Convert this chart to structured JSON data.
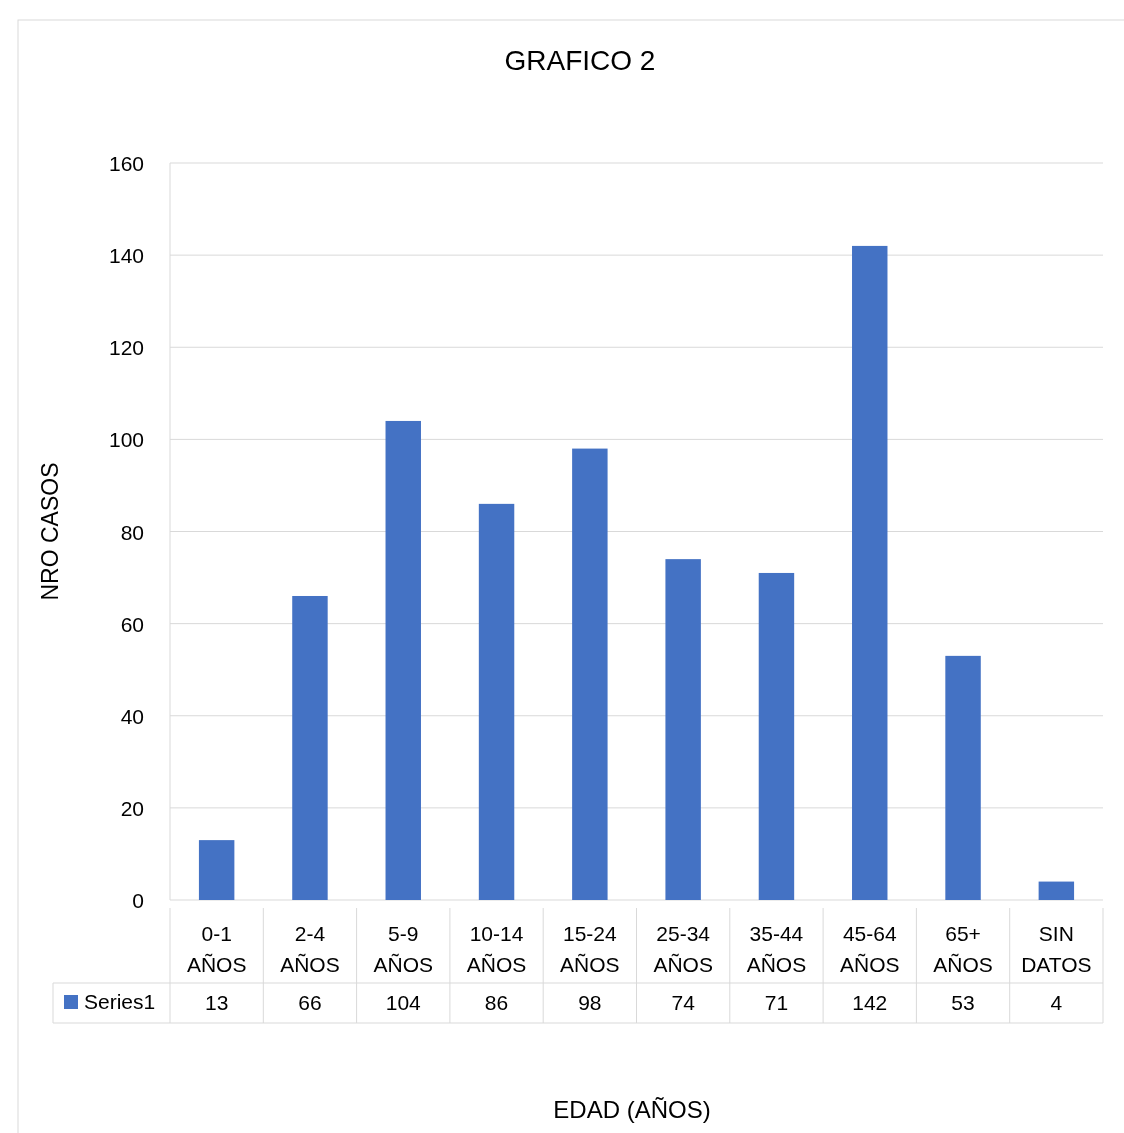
{
  "chart_data": {
    "type": "bar",
    "title": "GRAFICO 2",
    "xlabel": "EDAD (AÑOS)",
    "ylabel": "NRO CASOS",
    "categories": [
      "0-1 AÑOS",
      "2-4 AÑOS",
      "5-9 AÑOS",
      "10-14 AÑOS",
      "15-24 AÑOS",
      "25-34 AÑOS",
      "35-44 AÑOS",
      "45-64 AÑOS",
      "65+ AÑOS",
      "SIN DATOS"
    ],
    "series": [
      {
        "name": "Series1",
        "color": "#4472c4",
        "values": [
          13,
          66,
          104,
          86,
          98,
          74,
          71,
          142,
          53,
          4
        ]
      }
    ],
    "ylim": [
      0,
      160
    ],
    "yticks": [
      0,
      20,
      40,
      60,
      80,
      100,
      120,
      140,
      160
    ],
    "grid": "y",
    "legend": "bottom",
    "data_labels": true
  }
}
